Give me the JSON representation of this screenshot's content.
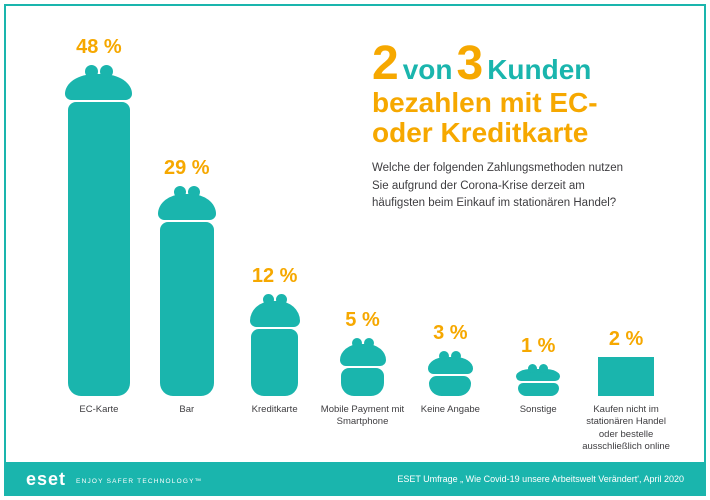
{
  "colors": {
    "teal": "#1ab5ad",
    "yellow": "#f6a800",
    "dark_text": "#3e3d40",
    "background": "#ffffff"
  },
  "title": {
    "num1": "2",
    "von": "von",
    "num2": "3",
    "kunden": "Kunden",
    "line2": "bezahlen mit EC-",
    "line3": "oder Kreditkarte"
  },
  "question_lines": [
    "Welche der folgenden Zahlungsmethoden nutzen",
    "Sie aufgrund der Corona-Krise derzeit am",
    "häufigsten beim Einkauf im stationären Handel?"
  ],
  "chart_data": {
    "type": "bar",
    "title": "2 von 3 Kunden bezahlen mit EC- oder Kreditkarte",
    "subtitle": "Welche der folgenden Zahlungsmethoden nutzen Sie aufgrund der Corona-Krise derzeit am häufigsten beim Einkauf im stationären Handel?",
    "categories": [
      "EC-Karte",
      "Bar",
      "Kreditkarte",
      "Mobile Payment mit Smartphone",
      "Keine Angabe",
      "Sonstige",
      "Kaufen nicht im stationären Handel oder bestelle ausschließlich online"
    ],
    "values": [
      48,
      29,
      12,
      5,
      3,
      1,
      2
    ],
    "value_labels": [
      "48 %",
      "29 %",
      "12 %",
      "5 %",
      "3 %",
      "1 %",
      "2 %"
    ],
    "unit": "%",
    "ylim": [
      0,
      50
    ],
    "grid": false,
    "legend": "none",
    "bar_styles": [
      "purse",
      "purse",
      "purse",
      "purse",
      "purse",
      "purse",
      "rect"
    ]
  },
  "footer": {
    "logo": "eset",
    "tagline": "ENJOY SAFER TECHNOLOGY™",
    "source": "ESET Umfrage „ Wie Covid-19 unsere Arbeitswelt Verändert', April 2020"
  }
}
